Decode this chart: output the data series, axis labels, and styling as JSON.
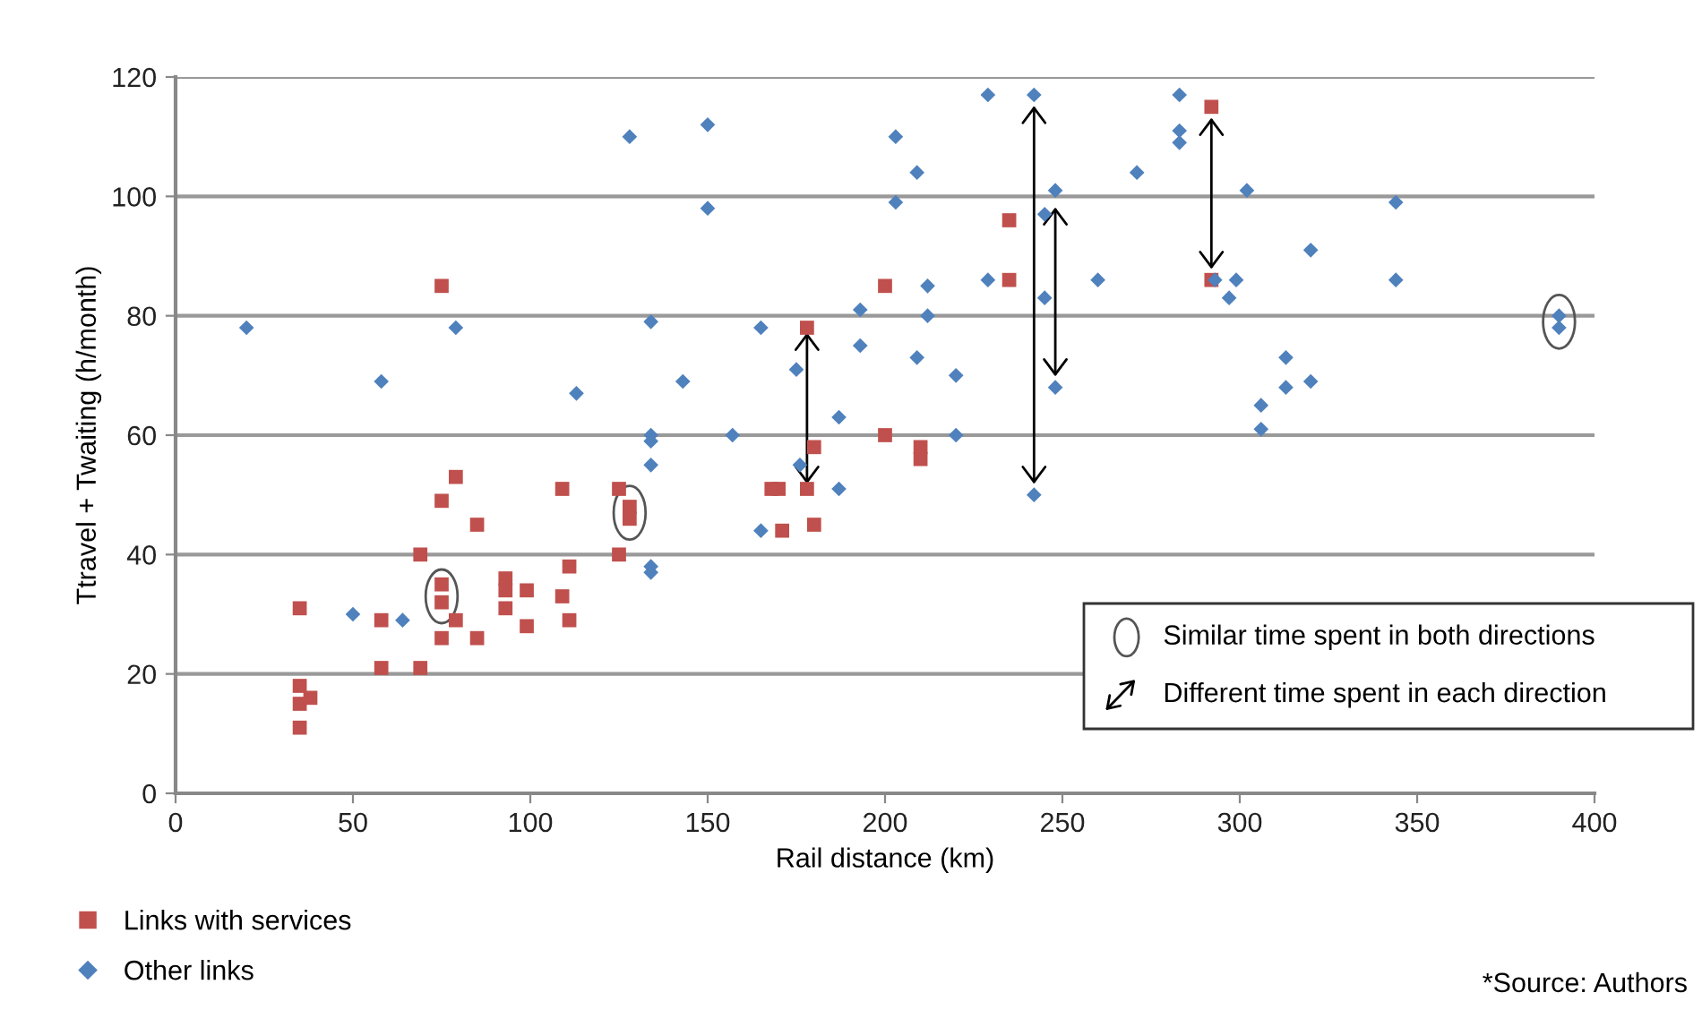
{
  "chart_data": {
    "type": "scatter",
    "xlabel": "Rail distance (km)",
    "ylabel": "Ttravel + Twaiting (h/month)",
    "xlim": [
      0,
      400
    ],
    "ylim": [
      0,
      120
    ],
    "xticks": [
      0,
      50,
      100,
      150,
      200,
      250,
      300,
      350,
      400
    ],
    "yticks": [
      0,
      20,
      40,
      60,
      80,
      100,
      120
    ],
    "grid": "y",
    "legend": "bottom left",
    "series": [
      {
        "name": "Links with services",
        "color": "#c0504d",
        "marker": "square",
        "x": [
          75,
          35,
          35,
          35,
          38,
          35,
          58,
          58,
          69,
          69,
          75,
          75,
          75,
          75,
          79,
          79,
          85,
          85,
          93,
          93,
          93,
          99,
          99,
          109,
          109,
          111,
          111,
          125,
          125,
          128,
          128,
          170,
          168,
          171,
          178,
          180,
          178,
          180,
          200,
          200,
          210,
          210,
          235,
          235,
          292,
          292
        ],
        "values": [
          85,
          31,
          18,
          15,
          16,
          11,
          29,
          21,
          40,
          21,
          49,
          35,
          32,
          26,
          53,
          29,
          45,
          26,
          36,
          34,
          31,
          34,
          28,
          51,
          33,
          38,
          29,
          51,
          40,
          48,
          46,
          51,
          51,
          44,
          78,
          58,
          51,
          45,
          60,
          85,
          58,
          56,
          96,
          86,
          115,
          86
        ]
      },
      {
        "name": "Other links",
        "color": "#4f81bd",
        "marker": "diamond",
        "x": [
          20,
          50,
          58,
          64,
          79,
          113,
          128,
          134,
          134,
          134,
          134,
          134,
          134,
          143,
          150,
          150,
          157,
          165,
          165,
          175,
          176,
          187,
          187,
          193,
          193,
          203,
          203,
          209,
          209,
          212,
          212,
          220,
          220,
          229,
          229,
          242,
          242,
          245,
          245,
          248,
          248,
          260,
          271,
          283,
          283,
          283,
          293,
          297,
          302,
          299,
          306,
          306,
          313,
          313,
          320,
          320,
          344,
          344,
          390,
          390
        ],
        "values": [
          78,
          30,
          69,
          29,
          78,
          67,
          110,
          79,
          60,
          59,
          55,
          38,
          37,
          69,
          112,
          98,
          60,
          78,
          44,
          71,
          55,
          63,
          51,
          81,
          75,
          110,
          99,
          104,
          73,
          85,
          80,
          70,
          60,
          117,
          86,
          117,
          50,
          97,
          83,
          101,
          68,
          86,
          104,
          117,
          111,
          109,
          86,
          83,
          101,
          86,
          65,
          61,
          73,
          68,
          91,
          69,
          99,
          86,
          80,
          78
        ]
      }
    ],
    "annotations": [
      "Similar time spent in both directions",
      "Different time spent in each direction",
      "*Source: Authors"
    ]
  }
}
